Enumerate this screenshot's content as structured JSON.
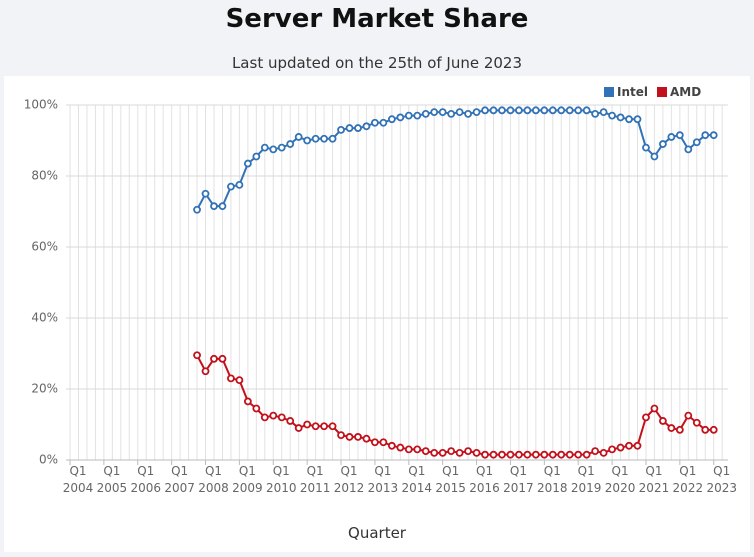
{
  "chart_data": {
    "type": "line",
    "title": "Server Market Share",
    "subtitle": "Last updated on the 25th of June 2023",
    "x_label": "Quarter",
    "categories": [
      "Q1\n2004",
      null,
      null,
      null,
      "Q1\n2005",
      null,
      null,
      null,
      "Q1\n2006",
      null,
      null,
      null,
      "Q1\n2007",
      null,
      null,
      null,
      "Q1\n2008",
      null,
      null,
      null,
      "Q1\n2009",
      null,
      null,
      null,
      "Q1\n2010",
      null,
      null,
      null,
      "Q1\n2011",
      null,
      null,
      null,
      "Q1\n2012",
      null,
      null,
      null,
      "Q1\n2013",
      null,
      null,
      null,
      "Q1\n2014",
      null,
      null,
      null,
      "Q1\n2015",
      null,
      null,
      null,
      "Q1\n2016",
      null,
      null,
      null,
      "Q1\n2017",
      null,
      null,
      null,
      "Q1\n2018",
      null,
      null,
      null,
      "Q1\n2019",
      null,
      null,
      null,
      "Q1\n2020",
      null,
      null,
      null,
      "Q1\n2021",
      null,
      null,
      null,
      "Q1\n2022",
      null,
      null,
      null,
      "Q1\n2023",
      null
    ],
    "series": [
      {
        "name": "Intel",
        "color": "#3272b6",
        "values": [
          null,
          null,
          null,
          null,
          null,
          null,
          null,
          null,
          null,
          null,
          null,
          null,
          null,
          null,
          null,
          70.5,
          75,
          71.5,
          71.5,
          77,
          77.5,
          83.5,
          85.5,
          88,
          87.5,
          88,
          89,
          91,
          90,
          90.5,
          90.5,
          90.5,
          93,
          93.5,
          93.5,
          94,
          95,
          95,
          96,
          96.5,
          97,
          97,
          97.5,
          98,
          98,
          97.5,
          98,
          97.5,
          98,
          98.5,
          98.5,
          98.5,
          98.5,
          98.5,
          98.5,
          98.5,
          98.5,
          98.5,
          98.5,
          98.5,
          98.5,
          98.5,
          97.5,
          98,
          97,
          96.5,
          96,
          96,
          88,
          85.5,
          89,
          91,
          91.5,
          87.5,
          89.5,
          91.5,
          91.5,
          null
        ]
      },
      {
        "name": "AMD",
        "color": "#c3111b",
        "values": [
          null,
          null,
          null,
          null,
          null,
          null,
          null,
          null,
          null,
          null,
          null,
          null,
          null,
          null,
          null,
          29.5,
          25,
          28.5,
          28.5,
          23,
          22.5,
          16.5,
          14.5,
          12,
          12.5,
          12,
          11,
          9,
          10,
          9.5,
          9.5,
          9.5,
          7,
          6.5,
          6.5,
          6,
          5,
          5,
          4,
          3.5,
          3,
          3,
          2.5,
          2,
          2,
          2.5,
          2,
          2.5,
          2,
          1.5,
          1.5,
          1.5,
          1.5,
          1.5,
          1.5,
          1.5,
          1.5,
          1.5,
          1.5,
          1.5,
          1.5,
          1.5,
          2.5,
          2,
          3,
          3.5,
          4,
          4,
          12,
          14.5,
          11,
          9,
          8.5,
          12.5,
          10.5,
          8.5,
          8.5,
          null
        ]
      }
    ],
    "ylim": [
      0,
      100
    ],
    "yticks": [
      {
        "value": 0,
        "label": "0%"
      },
      {
        "value": 20,
        "label": "20%"
      },
      {
        "value": 40,
        "label": "40%"
      },
      {
        "value": 60,
        "label": "60%"
      },
      {
        "value": 80,
        "label": "80%"
      },
      {
        "value": 100,
        "label": "100%"
      }
    ],
    "grid": true,
    "legend": "top-right"
  }
}
